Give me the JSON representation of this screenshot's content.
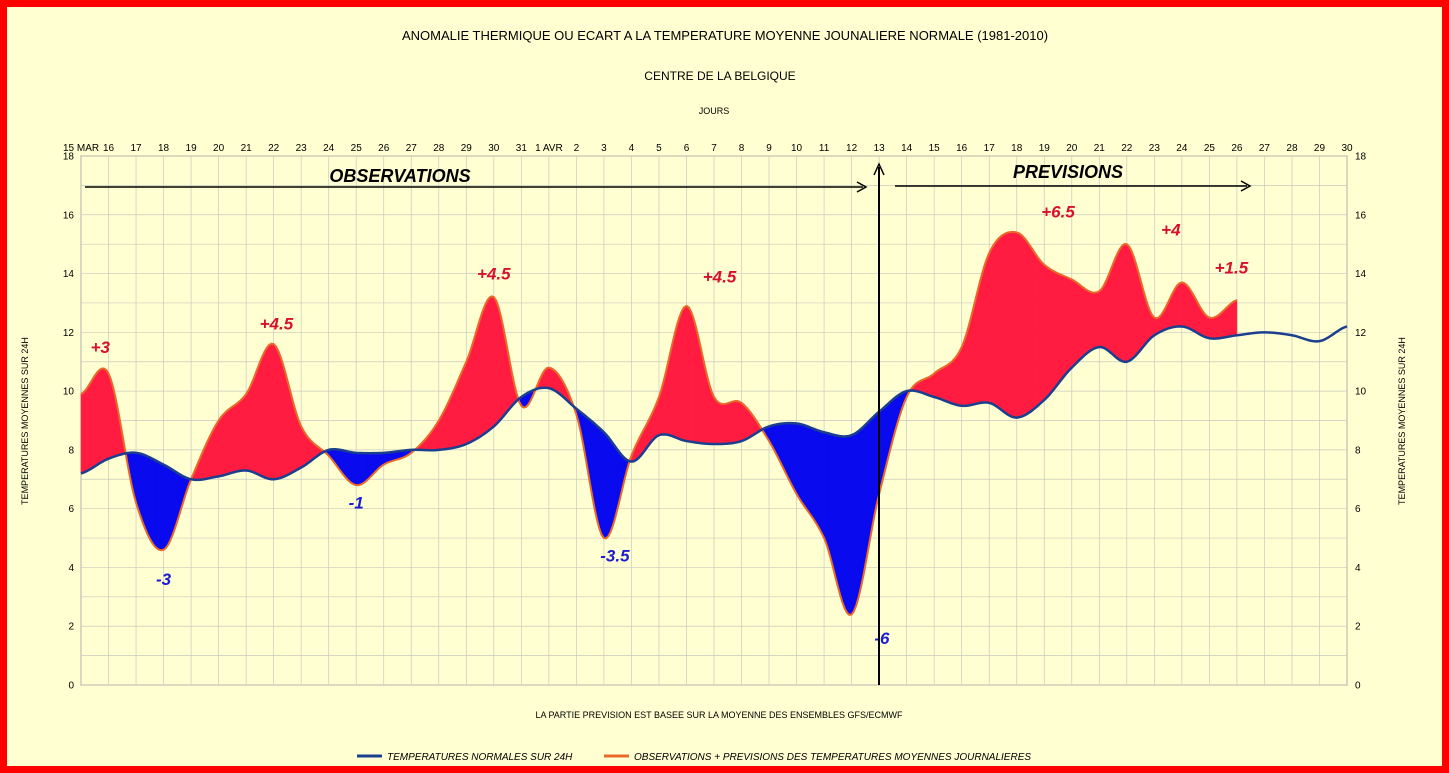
{
  "chart_data": {
    "type": "area",
    "title": "ANOMALIE THERMIQUE OU ECART A LA TEMPERATURE MOYENNE JOUNALIERE NORMALE (1981-2010)",
    "subtitle": "CENTRE DE LA BELGIQUE",
    "xlabel": "JOURS",
    "ylabel_left": "TEMPERATURES MOYENNES SUR 24H",
    "ylabel_right": "TEMPERATURES MOYENNES SUR 24H",
    "footnote": "LA PARTIE PREVISION EST BASEE SUR LA MOYENNE DES ENSEMBLES GFS/ECMWF",
    "x_tick_labels": [
      "15 MAR",
      "16",
      "17",
      "18",
      "19",
      "20",
      "21",
      "22",
      "23",
      "24",
      "25",
      "26",
      "27",
      "28",
      "29",
      "30",
      "31",
      "1 AVR",
      "2",
      "3",
      "4",
      "5",
      "6",
      "7",
      "8",
      "9",
      "10",
      "11",
      "12",
      "13",
      "14",
      "15",
      "16",
      "17",
      "18",
      "19",
      "20",
      "21",
      "22",
      "23",
      "24",
      "25",
      "26",
      "27",
      "28",
      "29",
      "30"
    ],
    "y_ticks": [
      "0",
      "2",
      "4",
      "6",
      "8",
      "10",
      "12",
      "14",
      "16",
      "18"
    ],
    "ylim": [
      0,
      18
    ],
    "grid": true,
    "legend_position": "bottom",
    "section_labels": [
      "OBSERVATIONS",
      "PREVISIONS"
    ],
    "colors": {
      "normal": "#1a3f8f",
      "observed": "#e8692a",
      "positive_fill": "#ff1c40",
      "negative_fill": "#0a0aee",
      "positive_label": "#d8102e",
      "negative_label": "#1c1cd0"
    },
    "series": [
      {
        "name": "TEMPERATURES NORMALES SUR 24H",
        "values": [
          7.2,
          7.7,
          7.9,
          7.5,
          7.0,
          7.1,
          7.3,
          7.0,
          7.4,
          8.0,
          7.9,
          7.9,
          8.0,
          8.0,
          8.2,
          8.8,
          9.8,
          10.1,
          9.4,
          8.6,
          7.6,
          8.5,
          8.3,
          8.2,
          8.3,
          8.8,
          8.9,
          8.6,
          8.5,
          9.3,
          10.0,
          9.8,
          9.5,
          9.6,
          9.1,
          9.7,
          10.8,
          11.5,
          11.0,
          11.9,
          12.2,
          11.8,
          11.9,
          12.0,
          11.9,
          11.7,
          12.2
        ]
      },
      {
        "name": "OBSERVATIONS + PREVISIONS DES TEMPERATURES MOYENNES JOURNALIERES",
        "values": [
          9.9,
          10.6,
          6.2,
          4.6,
          7.0,
          9.0,
          9.9,
          11.6,
          8.8,
          7.8,
          6.8,
          7.5,
          7.9,
          9.0,
          11.0,
          13.2,
          9.5,
          10.8,
          9.2,
          5.0,
          7.8,
          9.8,
          12.9,
          9.8,
          9.6,
          8.3,
          6.5,
          5.0,
          2.4,
          6.5,
          9.8,
          10.6,
          11.5,
          14.7,
          15.4,
          14.3,
          13.8,
          13.4,
          15.0,
          12.5,
          13.7,
          12.5,
          13.1
        ]
      }
    ],
    "annotations": [
      {
        "text": "+3",
        "x": 0.7,
        "y": 11.3,
        "sign": "pos"
      },
      {
        "text": "-3",
        "x": 3.0,
        "y": 3.4,
        "sign": "neg"
      },
      {
        "text": "+4.5",
        "x": 7.1,
        "y": 12.1,
        "sign": "pos"
      },
      {
        "text": "-1",
        "x": 10.0,
        "y": 6.0,
        "sign": "neg"
      },
      {
        "text": "+4.5",
        "x": 15.0,
        "y": 13.8,
        "sign": "pos"
      },
      {
        "text": "-3.5",
        "x": 19.4,
        "y": 4.2,
        "sign": "neg"
      },
      {
        "text": "+4.5",
        "x": 23.2,
        "y": 13.7,
        "sign": "pos"
      },
      {
        "text": "-6",
        "x": 29.1,
        "y": 1.4,
        "sign": "neg"
      },
      {
        "text": "+6.5",
        "x": 35.5,
        "y": 15.9,
        "sign": "pos"
      },
      {
        "text": "+4",
        "x": 39.6,
        "y": 15.3,
        "sign": "pos"
      },
      {
        "text": "+1.5",
        "x": 41.8,
        "y": 14.0,
        "sign": "pos"
      }
    ]
  }
}
